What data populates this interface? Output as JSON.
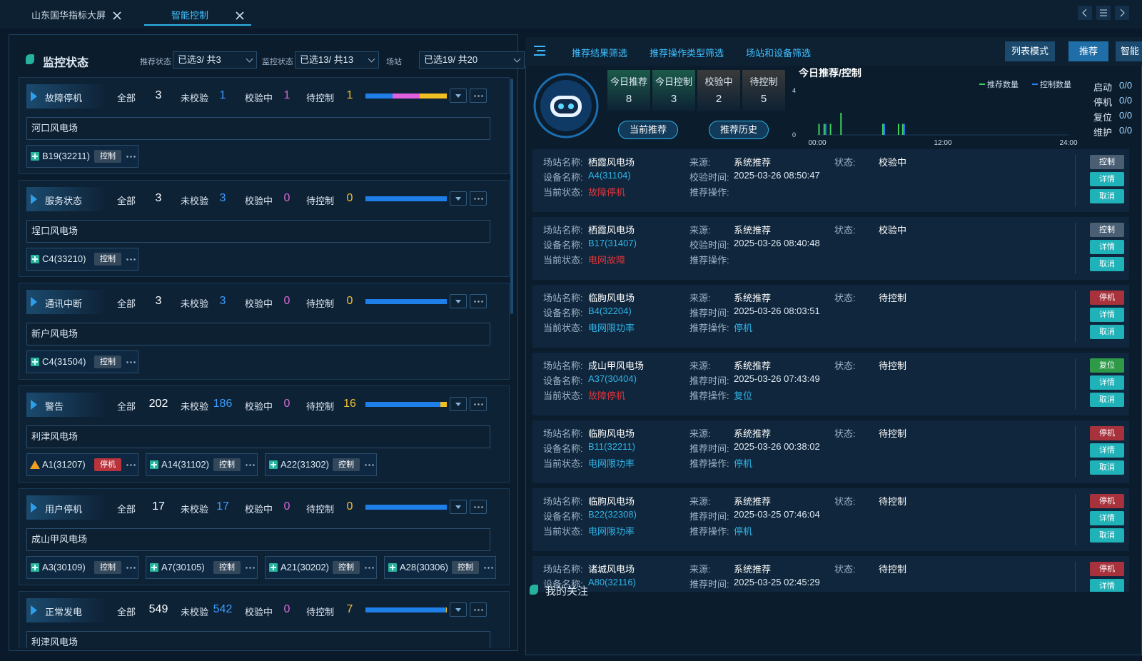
{
  "tabs": [
    "山东国华指标大屏",
    "智能控制"
  ],
  "active_tab": 1,
  "monitor": {
    "title": "监控状态",
    "filters": [
      {
        "label": "推荐状态",
        "value": "已选3/ 共3"
      },
      {
        "label": "监控状态",
        "value": "已选13/ 共13"
      },
      {
        "label": "场站",
        "value": "已选19/ 共20"
      }
    ],
    "stat_labels": [
      "全部",
      "未校验",
      "校验中",
      "待控制"
    ],
    "bar_colors": {
      "unchecked": "#1f7fe8",
      "checking": "#e060e0",
      "pending": "#f0c020"
    },
    "groups": [
      {
        "name": "故障停机",
        "total": 3,
        "unchecked": 1,
        "checking": 1,
        "pending": 1,
        "station": "河口风电场",
        "devices": [
          {
            "name": "B19(32211)",
            "action": "控制"
          }
        ]
      },
      {
        "name": "服务状态",
        "total": 3,
        "unchecked": 3,
        "checking": 0,
        "pending": 0,
        "station": "埕口风电场",
        "devices": [
          {
            "name": "C4(33210)",
            "action": "控制"
          }
        ]
      },
      {
        "name": "通讯中断",
        "total": 3,
        "unchecked": 3,
        "checking": 0,
        "pending": 0,
        "station": "新户风电场",
        "devices": [
          {
            "name": "C4(31504)",
            "action": "控制"
          }
        ]
      },
      {
        "name": "警告",
        "total": 202,
        "unchecked": 186,
        "checking": 0,
        "pending": 16,
        "station": "利津风电场",
        "devices": [
          {
            "name": "A1(31207)",
            "action": "停机",
            "warning": true
          },
          {
            "name": "A14(31102)",
            "action": "控制"
          },
          {
            "name": "A22(31302)",
            "action": "控制"
          }
        ]
      },
      {
        "name": "用户停机",
        "total": 17,
        "unchecked": 17,
        "checking": 0,
        "pending": 0,
        "station": "成山甲风电场",
        "devices": [
          {
            "name": "A3(30109)",
            "action": "控制"
          },
          {
            "name": "A7(30105)",
            "action": "控制"
          },
          {
            "name": "A21(30202)",
            "action": "控制"
          },
          {
            "name": "A28(30306)",
            "action": "控制"
          }
        ]
      },
      {
        "name": "正常发电",
        "total": 549,
        "unchecked": 542,
        "checking": 0,
        "pending": 7,
        "station": "利津风电场",
        "devices": []
      }
    ]
  },
  "recommend": {
    "tabs": [
      "推荐结果筛选",
      "推荐操作类型筛选",
      "场站和设备筛选"
    ],
    "mode_buttons": [
      "列表模式",
      "推荐",
      "智能"
    ],
    "stats": [
      {
        "label": "今日推荐",
        "value": 8
      },
      {
        "label": "今日控制",
        "value": 3
      },
      {
        "label": "校验中",
        "value": 2
      },
      {
        "label": "待控制",
        "value": 5
      }
    ],
    "history_buttons": [
      "当前推荐",
      "推荐历史"
    ],
    "counts": [
      {
        "label": "启动",
        "value": "0/0"
      },
      {
        "label": "停机",
        "value": "0/0"
      },
      {
        "label": "复位",
        "value": "0/0"
      },
      {
        "label": "维护",
        "value": "0/0"
      }
    ],
    "field_labels": {
      "station": "场站名称:",
      "device": "设备名称:",
      "current": "当前状态:",
      "source": "来源:",
      "op": "推荐操作:",
      "state": "状态:"
    },
    "detail_button": "详情",
    "cancel_button": "取消",
    "records": [
      {
        "station": "栖霞风电场",
        "device": "A4(31104)",
        "current": "故障停机",
        "current_color": "#e0343a",
        "source": "系统推荐",
        "time_label": "校验时间:",
        "time": "2025-03-26 08:50:47",
        "state": "校验中",
        "action": "控制",
        "action_color": "#4a5f74"
      },
      {
        "station": "栖霞风电场",
        "device": "B17(31407)",
        "current": "电网故障",
        "current_color": "#e0343a",
        "source": "系统推荐",
        "time_label": "校验时间:",
        "time": "2025-03-26 08:40:48",
        "state": "校验中",
        "action": "控制",
        "action_color": "#4a5f74"
      },
      {
        "station": "临朐风电场",
        "device": "B4(32204)",
        "current": "电网限功率",
        "current_color": "#2fb4e8",
        "source": "系统推荐",
        "time_label": "推荐时间:",
        "time": "2025-03-26 08:03:51",
        "op": "停机",
        "state": "待控制",
        "action": "停机",
        "action_color": "#a8323c"
      },
      {
        "station": "成山甲风电场",
        "device": "A37(30404)",
        "current": "故障停机",
        "current_color": "#e0343a",
        "source": "系统推荐",
        "time_label": "推荐时间:",
        "time": "2025-03-26 07:43:49",
        "op": "复位",
        "state": "待控制",
        "action": "复位",
        "action_color": "#2e9a48"
      },
      {
        "station": "临朐风电场",
        "device": "B11(32211)",
        "current": "电网限功率",
        "current_color": "#2fb4e8",
        "source": "系统推荐",
        "time_label": "推荐时间:",
        "time": "2025-03-26 00:38:02",
        "op": "停机",
        "state": "待控制",
        "action": "停机",
        "action_color": "#a8323c"
      },
      {
        "station": "临朐风电场",
        "device": "B22(32308)",
        "current": "电网限功率",
        "current_color": "#2fb4e8",
        "source": "系统推荐",
        "time_label": "推荐时间:",
        "time": "2025-03-25 07:46:04",
        "op": "停机",
        "state": "待控制",
        "action": "停机",
        "action_color": "#a8323c"
      },
      {
        "station": "诸城风电场",
        "device": "A80(32116)",
        "source": "系统推荐",
        "time_label": "推荐时间:",
        "time": "2025-03-25 02:45:29",
        "state": "待控制",
        "action": "停机",
        "action_color": "#a8323c"
      }
    ],
    "follow_title": "我的关注"
  },
  "chart_data": {
    "type": "bar",
    "title": "今日推荐/控制",
    "x": [
      0.1,
      0.6,
      1.2,
      2.2,
      6.2,
      7.7,
      8.1
    ],
    "series": [
      {
        "name": "推荐数量",
        "color": "#3fd15a",
        "values": [
          1,
          1,
          1,
          2,
          1,
          1,
          1
        ]
      },
      {
        "name": "控制数量",
        "color": "#2a7fff",
        "values": [
          0,
          1,
          0,
          0,
          1,
          0,
          1
        ]
      }
    ],
    "xlim": [
      0,
      24
    ],
    "ylim": [
      0,
      4
    ],
    "yticks": [
      0,
      4
    ],
    "xticks": [
      {
        "value": 0,
        "label": "00:00"
      },
      {
        "value": 12,
        "label": "12:00"
      },
      {
        "value": 24,
        "label": "24:00"
      }
    ]
  }
}
